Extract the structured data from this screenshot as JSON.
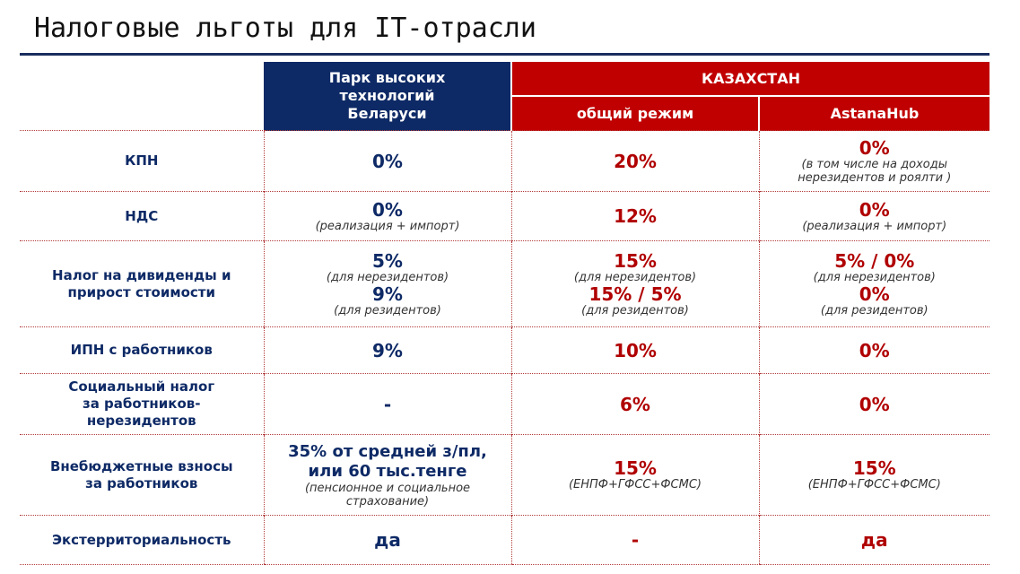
{
  "title": "Налоговые льготы для IT-отрасли",
  "header": {
    "belarus": [
      "Парк высоких",
      "технологий",
      "Беларуси"
    ],
    "kazakhstan": "КАЗАХСТАН",
    "general_regime": "общий режим",
    "astanahub": "AstanaHub"
  },
  "rows": {
    "kpn": {
      "label": "КПН",
      "by": "0%",
      "kz_general": "20%",
      "kz_hub": "0%",
      "kz_hub_note": [
        "(в том числе на доходы",
        "нерезидентов и роялти )"
      ]
    },
    "nds": {
      "label": "НДС",
      "by": "0%",
      "by_note": "(реализация + импорт)",
      "kz_general": "12%",
      "kz_hub": "0%",
      "kz_hub_note": "(реализация + импорт)"
    },
    "dividends": {
      "label": [
        "Налог на дивиденды и",
        "прирост стоимости"
      ],
      "by_nonres": "5%",
      "by_nonres_note": "(для нерезидентов)",
      "by_res": "9%",
      "by_res_note": "(для резидентов)",
      "kz_general_nonres": "15%",
      "kz_general_nonres_note": "(для нерезидентов)",
      "kz_general_res": "15% / 5%",
      "kz_general_res_note": "(для резидентов)",
      "kz_hub_nonres": "5% / 0%",
      "kz_hub_nonres_note": "(для нерезидентов)",
      "kz_hub_res": "0%",
      "kz_hub_res_note": "(для резидентов)"
    },
    "ipn": {
      "label": "ИПН с работников",
      "by": "9%",
      "kz_general": "10%",
      "kz_hub": "0%"
    },
    "social": {
      "label": [
        "Социальный налог",
        "за работников-",
        "нерезидентов"
      ],
      "by": "-",
      "kz_general": "6%",
      "kz_hub": "0%"
    },
    "offbudget": {
      "label": [
        "Внебюджетные взносы",
        "за работников"
      ],
      "by": [
        "35% от средней з/пл,",
        "или 60 тыс.тенге"
      ],
      "by_note": [
        "(пенсионное и социальное",
        "страхование)"
      ],
      "kz_general": "15%",
      "kz_general_note": "(ЕНПФ+ГФСС+ФСМС)",
      "kz_hub": "15%",
      "kz_hub_note": "(ЕНПФ+ГФСС+ФСМС)"
    },
    "exterritorial": {
      "label": "Экстерриториальность",
      "by": "да",
      "kz_general": "-",
      "kz_hub": "да"
    }
  }
}
